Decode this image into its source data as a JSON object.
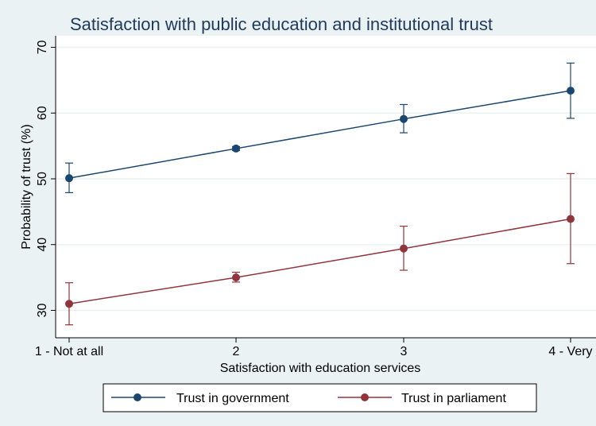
{
  "chart_data": {
    "type": "line",
    "title": "Satisfaction with public education and institutional trust",
    "xlabel": "Satisfaction with education services",
    "ylabel": "Probability of trust (%)",
    "categories": [
      "1 - Not at all",
      "2",
      "3",
      "4 - Very"
    ],
    "ylim": [
      27,
      71
    ],
    "yticks": [
      30,
      40,
      50,
      60,
      70
    ],
    "grid": "horizontal",
    "legend_position": "bottom",
    "series": [
      {
        "name": "Trust in government",
        "color": "#1a476f",
        "values": [
          50.1,
          54.6,
          59.1,
          63.4
        ],
        "ci_low": [
          47.9,
          54.3,
          57.0,
          59.2
        ],
        "ci_high": [
          52.4,
          54.9,
          61.3,
          67.6
        ]
      },
      {
        "name": "Trust in parliament",
        "color": "#90353b",
        "values": [
          31.0,
          35.0,
          39.4,
          43.9
        ],
        "ci_low": [
          27.8,
          34.3,
          36.1,
          37.1
        ],
        "ci_high": [
          34.2,
          35.8,
          42.8,
          50.8
        ]
      }
    ]
  }
}
